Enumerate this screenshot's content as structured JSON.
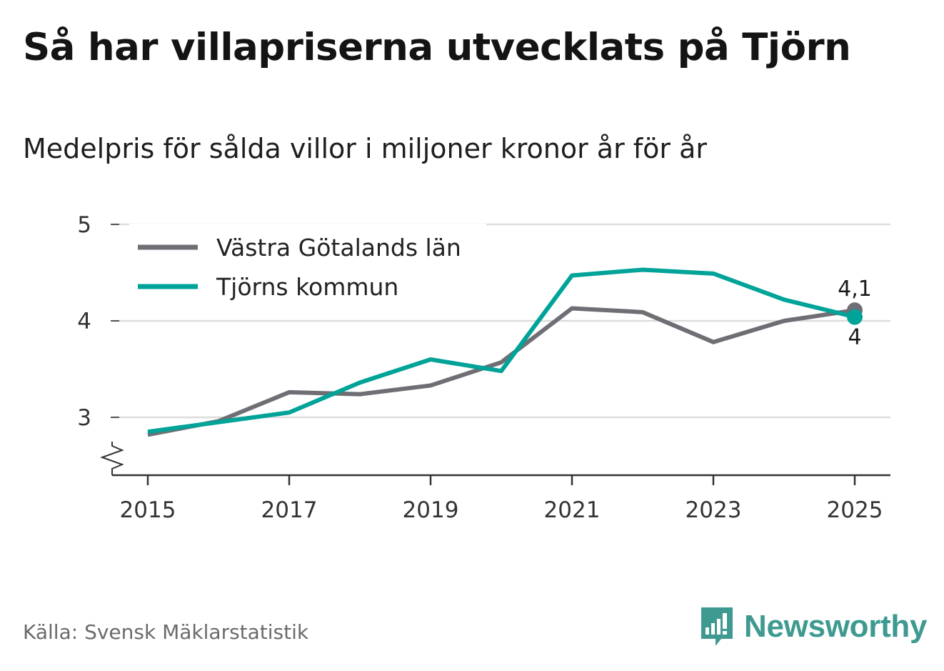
{
  "title": "Så har villapriserna utvecklats på Tjörn",
  "subtitle": "Medelpris för sålda villor i miljoner kronor år för år",
  "source": "Källa: Svensk Mäklarstatistik",
  "brand": "Newsworthy",
  "colors": {
    "vastra": "#6f6e75",
    "tjorn": "#00a398",
    "grid": "#dddddd",
    "axis": "#333333",
    "brand": "#3e9a90"
  },
  "chart_data": {
    "type": "line",
    "title": "Så har villapriserna utvecklats på Tjörn",
    "ylabel": "Medelpris för sålda villor i miljoner kronor",
    "xlabel": "",
    "x": [
      2015,
      2016,
      2017,
      2018,
      2019,
      2020,
      2021,
      2022,
      2023,
      2024,
      2025
    ],
    "x_ticks": [
      "2015",
      "2017",
      "2019",
      "2021",
      "2023",
      "2025"
    ],
    "y_ticks": [
      "3",
      "4",
      "5"
    ],
    "ylim": [
      2.4,
      5
    ],
    "axis_break": true,
    "legend_position": "top-left",
    "series": [
      {
        "name": "Västra Götalands län",
        "color": "#6f6e75",
        "values": [
          2.82,
          2.96,
          3.26,
          3.24,
          3.33,
          3.57,
          4.13,
          4.09,
          3.78,
          4.0,
          4.11
        ],
        "end_label": "4,1"
      },
      {
        "name": "Tjörns kommun",
        "color": "#00a398",
        "values": [
          2.85,
          2.95,
          3.05,
          3.36,
          3.6,
          3.48,
          4.47,
          4.53,
          4.49,
          4.22,
          4.04
        ],
        "end_label": "4"
      }
    ]
  }
}
